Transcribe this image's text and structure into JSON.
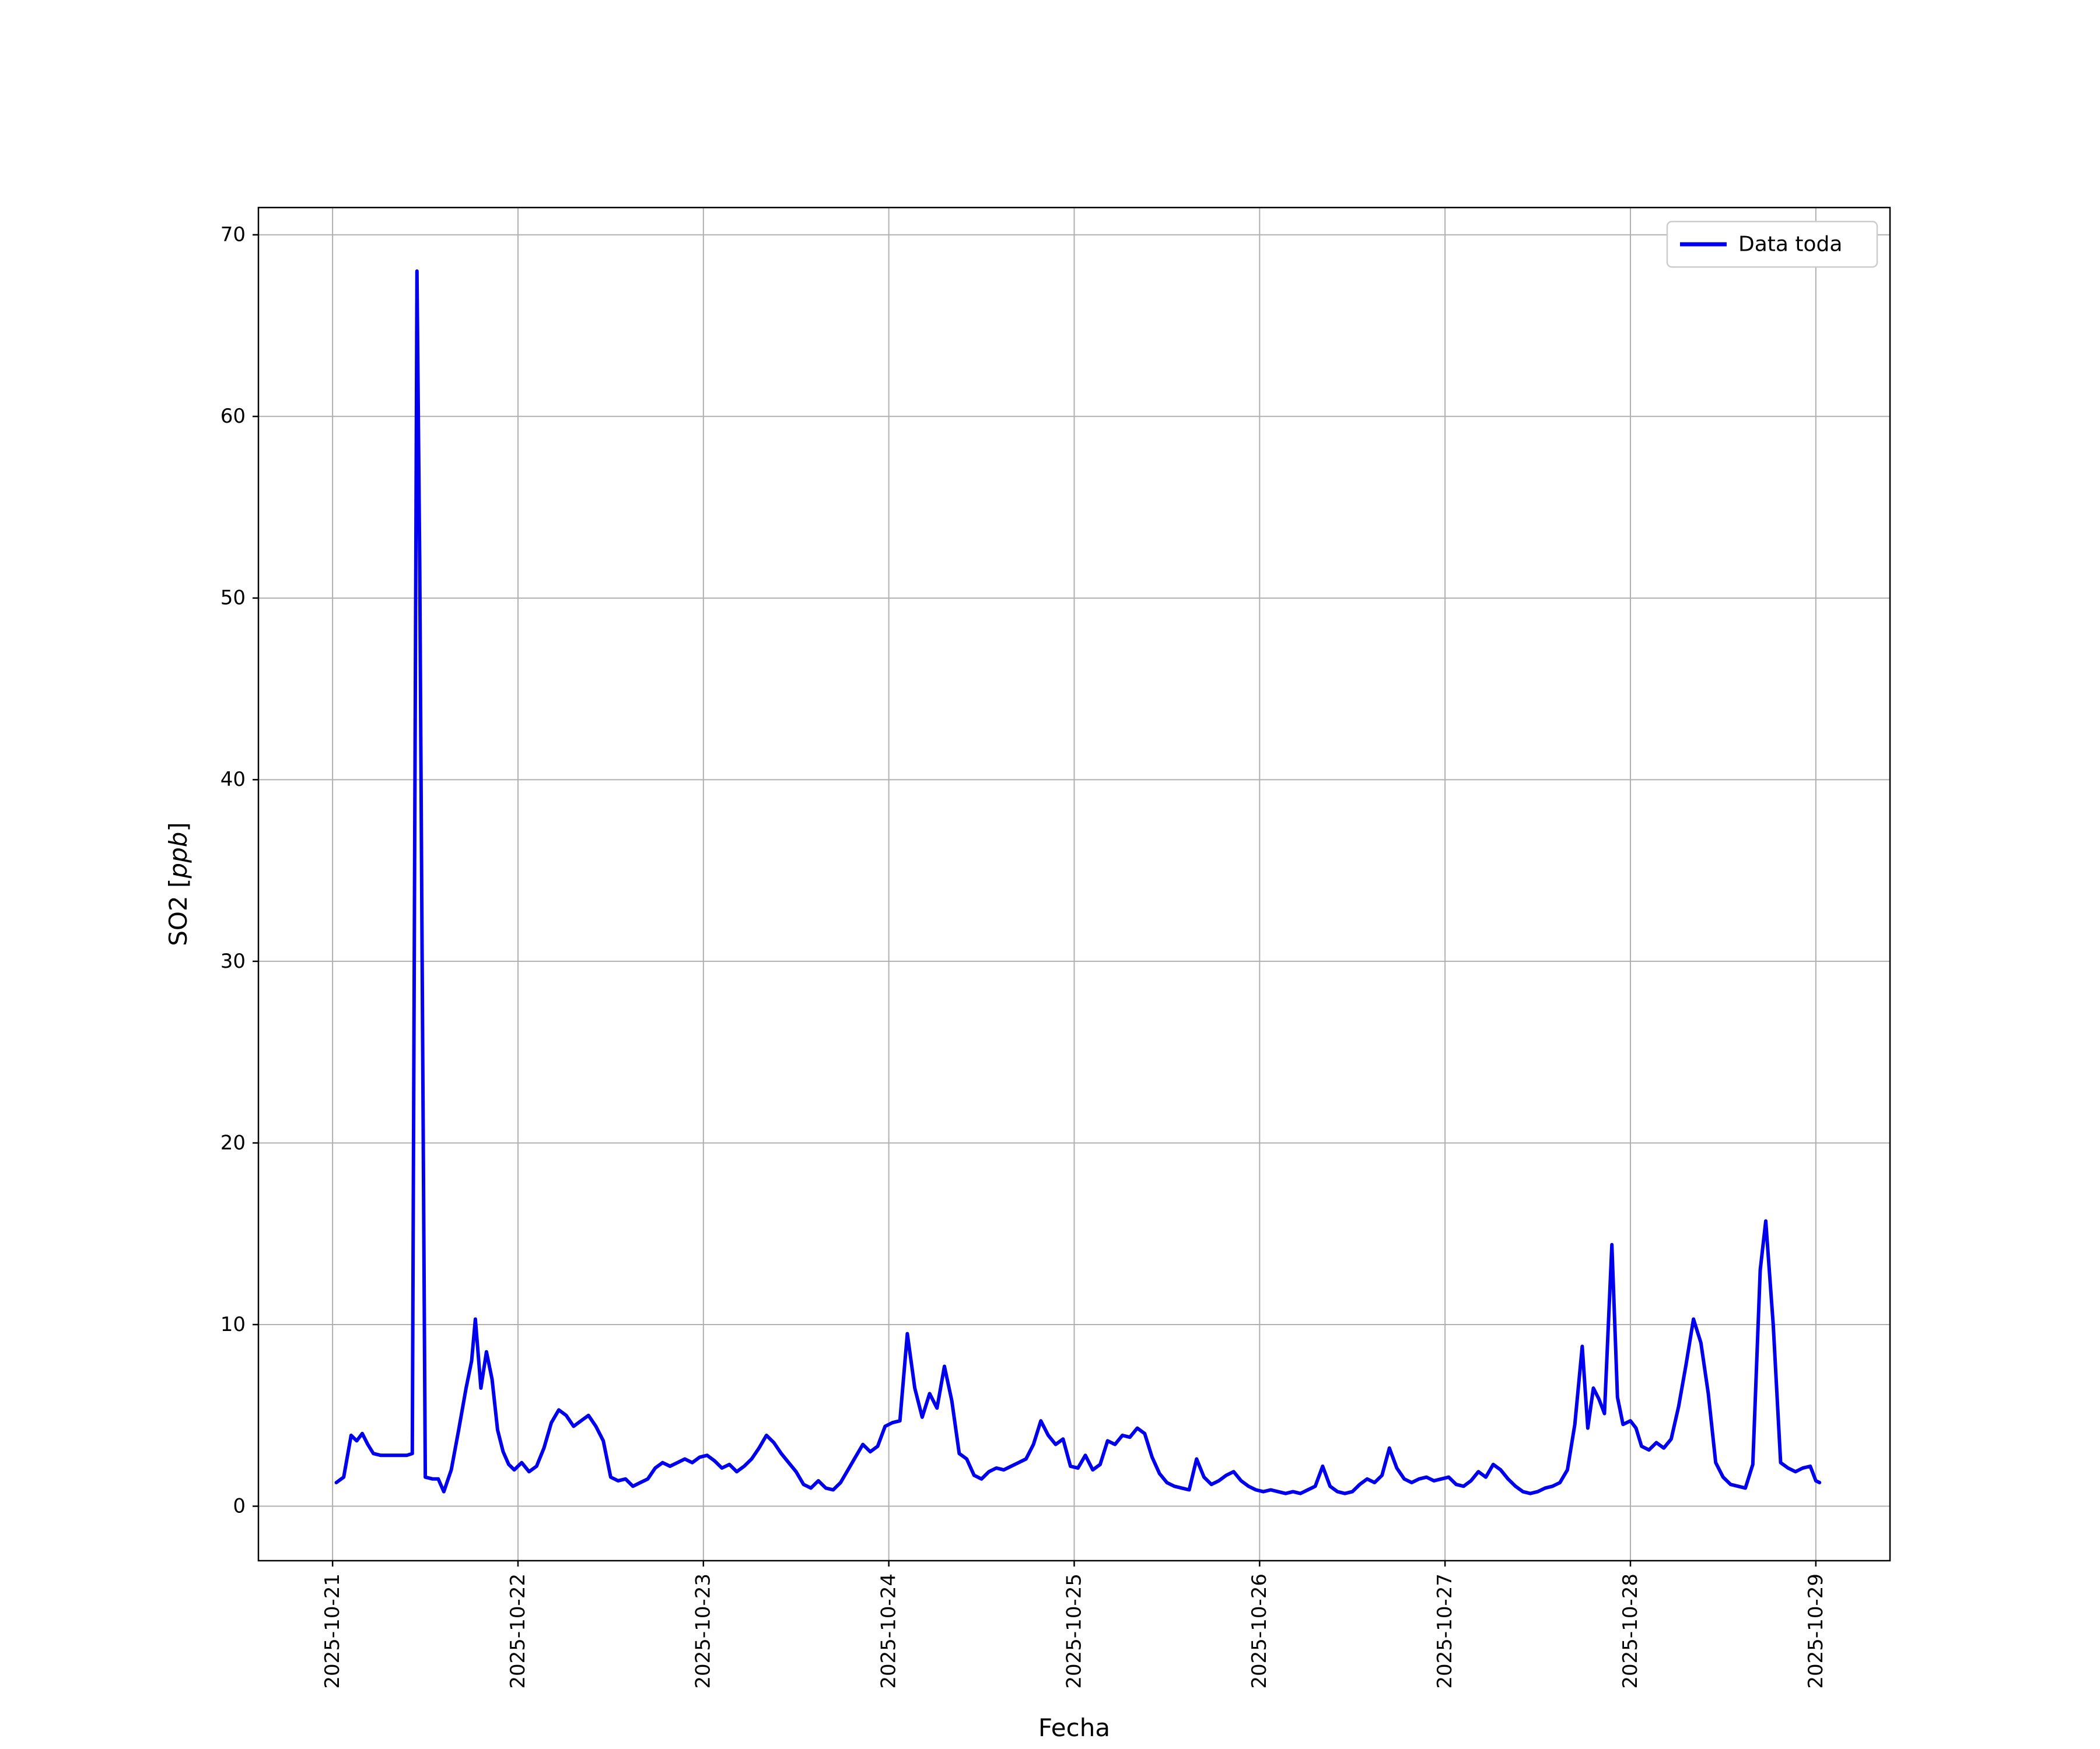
{
  "chart_data": {
    "type": "line",
    "title": "",
    "xlabel": "Fecha",
    "ylabel": "SO2 [ppb]",
    "ylabel_parts": {
      "prefix": "SO2 [",
      "italic": "ppb",
      "suffix": "]"
    },
    "legend_label": "Data toda",
    "legend_position": "upper right",
    "grid": true,
    "background": "#ffffff",
    "line_color": "#0000ee",
    "grid_color": "#b0b0b0",
    "x_unit": "days since 2025-10-21 00:00",
    "x_tick_positions": [
      0,
      1,
      2,
      3,
      4,
      5,
      6,
      7,
      8
    ],
    "x_tick_labels": [
      "2025-10-21",
      "2025-10-22",
      "2025-10-23",
      "2025-10-24",
      "2025-10-25",
      "2025-10-26",
      "2025-10-27",
      "2025-10-28",
      "2025-10-29"
    ],
    "y_ticks": [
      0,
      10,
      20,
      30,
      40,
      50,
      60,
      70
    ],
    "xlim": [
      -0.4,
      8.4
    ],
    "ylim": [
      -3.0,
      71.5
    ],
    "series": [
      {
        "name": "Data toda",
        "x": [
          0.02,
          0.06,
          0.1,
          0.13,
          0.16,
          0.19,
          0.22,
          0.26,
          0.3,
          0.35,
          0.4,
          0.43,
          0.455,
          0.47,
          0.5,
          0.54,
          0.57,
          0.6,
          0.64,
          0.68,
          0.72,
          0.75,
          0.77,
          0.8,
          0.83,
          0.86,
          0.89,
          0.92,
          0.95,
          0.98,
          1.02,
          1.06,
          1.1,
          1.14,
          1.18,
          1.22,
          1.26,
          1.3,
          1.34,
          1.38,
          1.42,
          1.46,
          1.5,
          1.54,
          1.58,
          1.62,
          1.66,
          1.7,
          1.74,
          1.78,
          1.82,
          1.86,
          1.9,
          1.94,
          1.98,
          2.02,
          2.06,
          2.1,
          2.14,
          2.18,
          2.22,
          2.26,
          2.3,
          2.34,
          2.38,
          2.42,
          2.46,
          2.5,
          2.54,
          2.58,
          2.62,
          2.66,
          2.7,
          2.74,
          2.78,
          2.82,
          2.86,
          2.9,
          2.94,
          2.98,
          3.02,
          3.06,
          3.1,
          3.14,
          3.18,
          3.22,
          3.26,
          3.3,
          3.34,
          3.38,
          3.42,
          3.46,
          3.5,
          3.54,
          3.58,
          3.62,
          3.66,
          3.7,
          3.74,
          3.78,
          3.82,
          3.86,
          3.9,
          3.94,
          3.98,
          4.02,
          4.06,
          4.1,
          4.14,
          4.18,
          4.22,
          4.26,
          4.3,
          4.34,
          4.38,
          4.42,
          4.46,
          4.5,
          4.54,
          4.58,
          4.62,
          4.66,
          4.7,
          4.74,
          4.78,
          4.82,
          4.86,
          4.9,
          4.94,
          4.98,
          5.02,
          5.06,
          5.1,
          5.14,
          5.18,
          5.22,
          5.26,
          5.3,
          5.34,
          5.38,
          5.42,
          5.46,
          5.5,
          5.54,
          5.58,
          5.62,
          5.66,
          5.7,
          5.74,
          5.78,
          5.82,
          5.86,
          5.9,
          5.94,
          5.98,
          6.02,
          6.06,
          6.1,
          6.14,
          6.18,
          6.22,
          6.26,
          6.3,
          6.34,
          6.38,
          6.42,
          6.46,
          6.5,
          6.54,
          6.58,
          6.62,
          6.66,
          6.7,
          6.74,
          6.77,
          6.8,
          6.83,
          6.86,
          6.9,
          6.93,
          6.96,
          7.0,
          7.03,
          7.06,
          7.1,
          7.14,
          7.18,
          7.22,
          7.26,
          7.3,
          7.34,
          7.38,
          7.42,
          7.46,
          7.5,
          7.54,
          7.58,
          7.62,
          7.66,
          7.7,
          7.73,
          7.77,
          7.81,
          7.85,
          7.89,
          7.93,
          7.97,
          8.0,
          8.02
        ],
        "y": [
          1.3,
          1.6,
          3.9,
          3.6,
          4.0,
          3.4,
          2.9,
          2.8,
          2.8,
          2.8,
          2.8,
          2.9,
          68.0,
          52.0,
          1.6,
          1.5,
          1.5,
          0.8,
          2.0,
          4.2,
          6.5,
          8.0,
          10.3,
          6.5,
          8.5,
          7.0,
          4.2,
          3.0,
          2.3,
          2.0,
          2.4,
          1.9,
          2.2,
          3.2,
          4.6,
          5.3,
          5.0,
          4.4,
          4.7,
          5.0,
          4.4,
          3.6,
          1.6,
          1.4,
          1.5,
          1.1,
          1.3,
          1.5,
          2.1,
          2.4,
          2.2,
          2.4,
          2.6,
          2.4,
          2.7,
          2.8,
          2.5,
          2.1,
          2.3,
          1.9,
          2.2,
          2.6,
          3.2,
          3.9,
          3.5,
          2.9,
          2.4,
          1.9,
          1.2,
          1.0,
          1.4,
          1.0,
          0.9,
          1.3,
          2.0,
          2.7,
          3.4,
          3.0,
          3.3,
          4.4,
          4.6,
          4.7,
          9.5,
          6.5,
          4.9,
          6.2,
          5.4,
          7.7,
          5.8,
          2.9,
          2.6,
          1.7,
          1.5,
          1.9,
          2.1,
          2.0,
          2.2,
          2.4,
          2.6,
          3.4,
          4.7,
          3.9,
          3.4,
          3.7,
          2.2,
          2.1,
          2.8,
          2.0,
          2.3,
          3.6,
          3.4,
          3.9,
          3.8,
          4.3,
          4.0,
          2.7,
          1.8,
          1.3,
          1.1,
          1.0,
          0.9,
          2.6,
          1.6,
          1.2,
          1.4,
          1.7,
          1.9,
          1.4,
          1.1,
          0.9,
          0.8,
          0.9,
          0.8,
          0.7,
          0.8,
          0.7,
          0.9,
          1.1,
          2.2,
          1.1,
          0.8,
          0.7,
          0.8,
          1.2,
          1.5,
          1.3,
          1.7,
          3.2,
          2.1,
          1.5,
          1.3,
          1.5,
          1.6,
          1.4,
          1.5,
          1.6,
          1.2,
          1.1,
          1.4,
          1.9,
          1.6,
          2.3,
          2.0,
          1.5,
          1.1,
          0.8,
          0.7,
          0.8,
          1.0,
          1.1,
          1.3,
          2.0,
          4.5,
          8.8,
          4.3,
          6.5,
          5.9,
          5.1,
          14.4,
          6.0,
          4.5,
          4.7,
          4.3,
          3.3,
          3.1,
          3.5,
          3.2,
          3.7,
          5.5,
          7.8,
          10.3,
          9.0,
          6.2,
          2.4,
          1.6,
          1.2,
          1.1,
          1.0,
          2.3,
          13.0,
          15.7,
          10.0,
          2.4,
          2.1,
          1.9,
          2.1,
          2.2,
          1.4,
          1.3
        ]
      }
    ]
  }
}
